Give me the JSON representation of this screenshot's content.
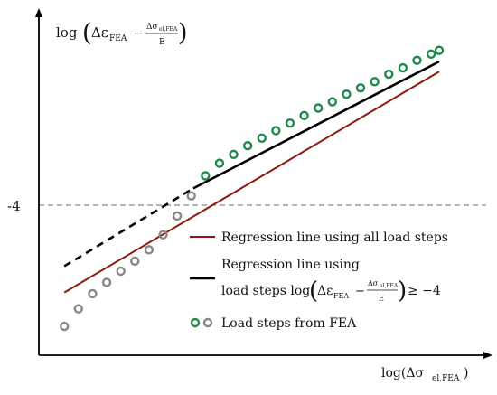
{
  "chart_data": {
    "type": "scatter",
    "title": "",
    "y_axis": {
      "label_lead": "log",
      "label_eps": "Δε",
      "label_eps_sub": "FEA",
      "label_minus": "−",
      "frac_num": "Δσ",
      "frac_num_sub": "el,FEA",
      "frac_den": "E"
    },
    "x_axis": {
      "label_main": "log(Δσ",
      "label_sub": "el,FEA",
      "label_close": ")"
    },
    "reference_line": {
      "y": -4,
      "label": "-4",
      "style": "dashed",
      "color": "#888888"
    },
    "ylim": [
      -5.33,
      -2.6
    ],
    "xlim": [
      0,
      10
    ],
    "series": [
      {
        "name": "Regression line using all load steps",
        "kind": "line",
        "color": "#8b1a0e",
        "x": [
          0.7,
          10.0
        ],
        "y": [
          -4.83,
          -3.07
        ]
      },
      {
        "name": "Regression line using load steps log(Δε_FEA − Δσ_el,FEA/E) ≥ −4",
        "kind": "line",
        "color": "#000000",
        "segments": [
          {
            "style": "dashed",
            "x": [
              0.7,
              3.9
            ],
            "y": [
              -4.62,
              -4.0
            ]
          },
          {
            "style": "solid",
            "x": [
              3.9,
              10.0
            ],
            "y": [
              -4.0,
              -2.99
            ]
          }
        ]
      },
      {
        "name": "Load steps from FEA",
        "kind": "scatter",
        "color_below": "#888888",
        "color_above": "#1e8a4a",
        "x": [
          0.7,
          1.05,
          1.4,
          1.75,
          2.1,
          2.45,
          2.8,
          3.15,
          3.5,
          3.85,
          4.2,
          4.55,
          4.9,
          5.25,
          5.6,
          5.95,
          6.3,
          6.65,
          7.0,
          7.35,
          7.7,
          8.05,
          8.4,
          8.75,
          9.1,
          9.45,
          9.8,
          10.0
        ],
        "y": [
          -5.1,
          -4.96,
          -4.84,
          -4.75,
          -4.66,
          -4.58,
          -4.49,
          -4.37,
          -4.22,
          -4.06,
          -3.9,
          -3.8,
          -3.73,
          -3.66,
          -3.6,
          -3.54,
          -3.48,
          -3.42,
          -3.36,
          -3.31,
          -3.25,
          -3.2,
          -3.15,
          -3.09,
          -3.04,
          -2.98,
          -2.93,
          -2.9
        ]
      }
    ],
    "legend": {
      "position": "bottom-right",
      "entries": [
        {
          "kind": "line",
          "color": "#8b1a0e",
          "text": "Regression line using all load steps"
        },
        {
          "kind": "line",
          "color": "#000000",
          "line1": "Regression line using",
          "line2_lead": "load steps log",
          "eps": "Δε",
          "eps_sub": "FEA",
          "minus": "−",
          "frac_num": "Δσ",
          "frac_num_sub": "el,FEA",
          "frac_den": "E",
          "tail": "≥ −4"
        },
        {
          "kind": "markers",
          "colors": [
            "#1e8a4a",
            "#888888"
          ],
          "text": "Load steps from FEA"
        }
      ]
    },
    "grid": false
  }
}
